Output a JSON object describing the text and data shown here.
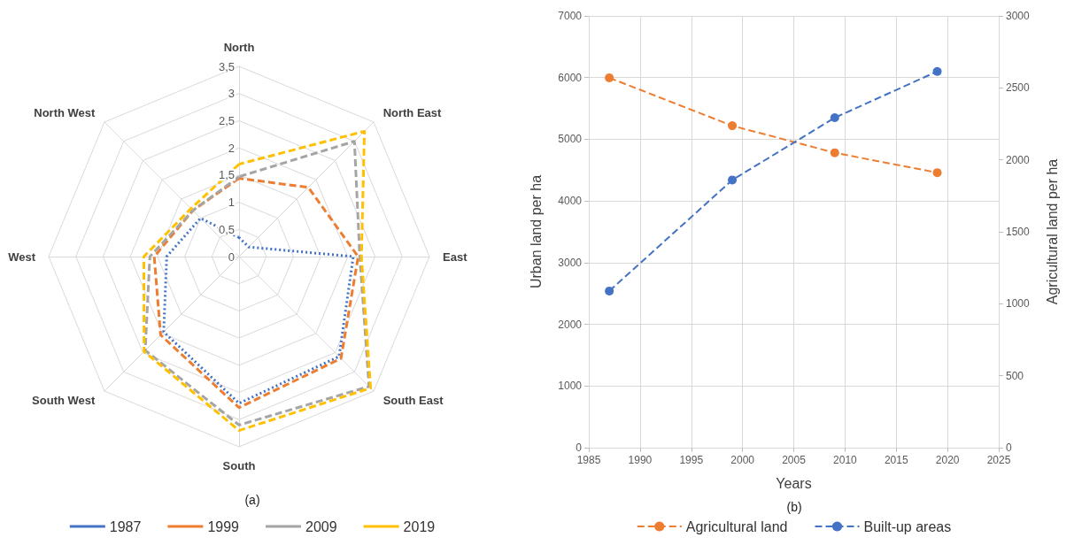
{
  "chart_data": [
    {
      "type": "radar",
      "categories": [
        "North",
        "North East",
        "East",
        "South East",
        "South",
        "South West",
        "West",
        "North West"
      ],
      "ylim": [
        0,
        3.5
      ],
      "yticks": [
        0,
        {
          "value": 0.5,
          "label": "0,5"
        },
        1,
        {
          "value": 1.5,
          "label": "1,5"
        },
        2,
        {
          "value": 2.5,
          "label": "2,5"
        },
        3,
        {
          "value": 3.5,
          "label": "3,5"
        }
      ],
      "grid": true,
      "legend": "bottom",
      "annotations": [
        "(a)"
      ],
      "series": [
        {
          "name": "1987",
          "color": "#4472c4",
          "line_style": "dotted",
          "values": [
            0.35,
            0.25,
            2.1,
            2.6,
            2.7,
            1.96,
            1.33,
            1.0
          ]
        },
        {
          "name": "1999",
          "color": "#ed7d31",
          "line_style": "dashed",
          "values": [
            1.44,
            1.8,
            2.19,
            2.65,
            2.78,
            2.04,
            1.56,
            1.2
          ]
        },
        {
          "name": "2009",
          "color": "#a5a5a5",
          "line_style": "dashed",
          "values": [
            1.47,
            3.0,
            2.22,
            3.38,
            3.1,
            2.44,
            1.64,
            1.2
          ]
        },
        {
          "name": "2019",
          "color": "#ffc000",
          "line_style": "dashed",
          "values": [
            1.7,
            3.26,
            2.25,
            3.42,
            3.2,
            2.47,
            1.75,
            1.25
          ]
        }
      ]
    },
    {
      "type": "line",
      "xlabel": "Years",
      "ylabel": "Urban land per ha",
      "y2label": "Agricultural land per ha",
      "annotations": [
        "(b)"
      ],
      "x": [
        1987,
        1999,
        2009,
        2019
      ],
      "xlim": [
        1985,
        2025
      ],
      "xticks": [
        1985,
        1990,
        1995,
        2000,
        2005,
        2010,
        2015,
        2020,
        2025
      ],
      "ylim": [
        0,
        7000
      ],
      "yticks": [
        0,
        1000,
        2000,
        3000,
        4000,
        5000,
        6000,
        7000
      ],
      "y2lim": [
        0,
        3000
      ],
      "y2ticks": [
        0,
        500,
        1000,
        1500,
        2000,
        2500,
        3000
      ],
      "grid": true,
      "legend": "bottom",
      "marker": "circle",
      "series": [
        {
          "name": "Agricultural land",
          "color": "#ed7d31",
          "axis": "y2",
          "line_style": "dashed",
          "values": [
            2570,
            2237,
            2049,
            1911
          ]
        },
        {
          "name": "Built-up areas",
          "color": "#4472c4",
          "line_style": "dashed",
          "values": [
            2540,
            4340,
            5350,
            6100
          ]
        }
      ]
    }
  ]
}
